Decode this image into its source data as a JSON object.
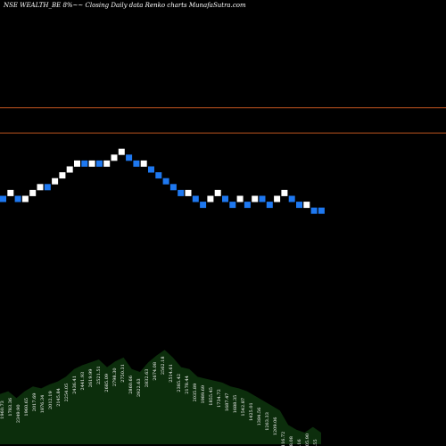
{
  "header": {
    "title": "NSE WEALTH_BE 8%~~ Closing Daily data  Renko  charts MunafaSutra.com"
  },
  "chart_data": {
    "type": "renko",
    "colors": {
      "up": "#ffffff",
      "down": "#1e78f0",
      "hline": "#b4501e",
      "volume_fill": "#0c2e0c"
    },
    "hlines": [
      {
        "name": "upper",
        "level": 23.5
      },
      {
        "name": "lower",
        "level": 19.2
      }
    ],
    "brick_levels": [
      {
        "level": 8.0,
        "dir": "down"
      },
      {
        "level": 9.0,
        "dir": "up"
      },
      {
        "level": 8.0,
        "dir": "down"
      },
      {
        "level": 8.0,
        "dir": "up"
      },
      {
        "level": 9.0,
        "dir": "up"
      },
      {
        "level": 10.0,
        "dir": "up"
      },
      {
        "level": 10.0,
        "dir": "down"
      },
      {
        "level": 11.0,
        "dir": "up"
      },
      {
        "level": 12.0,
        "dir": "up"
      },
      {
        "level": 13.0,
        "dir": "up"
      },
      {
        "level": 14.0,
        "dir": "up"
      },
      {
        "level": 14.0,
        "dir": "down"
      },
      {
        "level": 14.0,
        "dir": "up"
      },
      {
        "level": 14.0,
        "dir": "down"
      },
      {
        "level": 14.0,
        "dir": "up"
      },
      {
        "level": 15.0,
        "dir": "up"
      },
      {
        "level": 16.0,
        "dir": "up"
      },
      {
        "level": 15.0,
        "dir": "down"
      },
      {
        "level": 14.0,
        "dir": "down"
      },
      {
        "level": 14.0,
        "dir": "up"
      },
      {
        "level": 13.0,
        "dir": "down"
      },
      {
        "level": 12.0,
        "dir": "down"
      },
      {
        "level": 11.0,
        "dir": "down"
      },
      {
        "level": 10.0,
        "dir": "down"
      },
      {
        "level": 9.0,
        "dir": "down"
      },
      {
        "level": 9.0,
        "dir": "up"
      },
      {
        "level": 8.0,
        "dir": "down"
      },
      {
        "level": 7.0,
        "dir": "down"
      },
      {
        "level": 8.0,
        "dir": "up"
      },
      {
        "level": 9.0,
        "dir": "up"
      },
      {
        "level": 8.0,
        "dir": "down"
      },
      {
        "level": 7.0,
        "dir": "down"
      },
      {
        "level": 8.0,
        "dir": "up"
      },
      {
        "level": 7.0,
        "dir": "down"
      },
      {
        "level": 8.0,
        "dir": "up"
      },
      {
        "level": 8.0,
        "dir": "down"
      },
      {
        "level": 7.0,
        "dir": "down"
      },
      {
        "level": 8.0,
        "dir": "up"
      },
      {
        "level": 9.0,
        "dir": "up"
      },
      {
        "level": 8.0,
        "dir": "down"
      },
      {
        "level": 7.0,
        "dir": "down"
      },
      {
        "level": 7.0,
        "dir": "up"
      },
      {
        "level": 6.0,
        "dir": "down"
      },
      {
        "level": 6.0,
        "dir": "down"
      }
    ],
    "volume_labels": [
      "1960.73",
      "1783.36",
      "2349.90",
      "1960.65",
      "2017.69",
      "1876.34",
      "2012.19",
      "2145.84",
      "2254.05",
      "2436.41",
      "2441.93",
      "2619.99",
      "2521.51",
      "2685.09",
      "2798.30",
      "2750.31",
      "2860.66",
      "2922.63",
      "2832.63",
      "2674.08",
      "2562.18",
      "2514.61",
      "2385.42",
      "2178.44",
      "2035.89",
      "1989.69",
      "1855.45",
      "1734.72",
      "1687.47",
      "1688.35",
      "1542.87",
      "1425.01",
      "1384.56",
      "1263.33",
      "1209.06",
      "1116.72",
      "1018.08",
      "1156.16",
      "1205.90",
      "1283.55"
    ],
    "volume_levels": [
      0.52,
      0.55,
      0.48,
      0.55,
      0.6,
      0.58,
      0.62,
      0.65,
      0.7,
      0.78,
      0.82,
      0.85,
      0.88,
      0.8,
      0.86,
      0.9,
      0.78,
      0.75,
      0.85,
      0.92,
      0.98,
      0.9,
      0.8,
      0.78,
      0.7,
      0.68,
      0.66,
      0.64,
      0.6,
      0.58,
      0.55,
      0.5,
      0.45,
      0.4,
      0.35,
      0.2,
      0.15,
      0.12,
      0.18,
      0.12
    ]
  }
}
